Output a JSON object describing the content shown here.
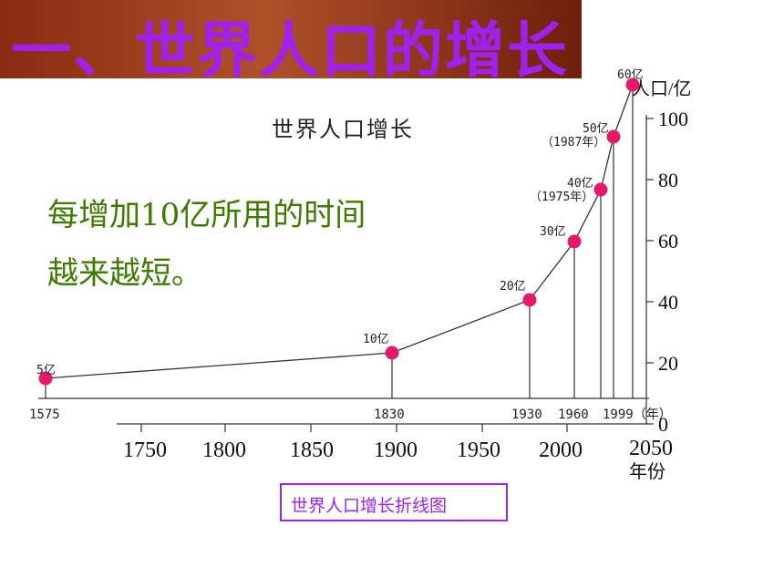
{
  "header": {
    "title": "一、世界人口的增长"
  },
  "figure": {
    "inner_title": "世界人口增长",
    "note_lines": [
      "每增加10亿所用的时间",
      "越来越短。"
    ],
    "caption": "世界人口增长折线图"
  },
  "chart_data": {
    "type": "line",
    "title": "世界人口增长",
    "caption": "世界人口增长折线图",
    "ylabel": "人口/亿",
    "xlabel": "年份",
    "ylim": [
      0,
      100
    ],
    "yticks": [
      "0",
      "20",
      "40",
      "60",
      "80",
      "100"
    ],
    "xticks": [
      "1750",
      "1800",
      "1850",
      "1900",
      "1950",
      "2000",
      "2050"
    ],
    "baseline_tick_labels": [
      "1575",
      "1830",
      "1930",
      "1960",
      "1999（年）"
    ],
    "series": [
      {
        "points": [
          {
            "label": "5亿",
            "year": "1575"
          },
          {
            "label": "10亿",
            "year": "1830"
          },
          {
            "label": "20亿",
            "year": "1930"
          },
          {
            "label": "30亿",
            "year": "1960"
          },
          {
            "label": "40亿",
            "year": "1975年"
          },
          {
            "label": "50亿",
            "year": "1987年"
          },
          {
            "label": "60亿",
            "year": "1999"
          }
        ]
      }
    ],
    "colors": {
      "line": "#333333",
      "point": "#e8196b",
      "axis": "#333333"
    }
  }
}
